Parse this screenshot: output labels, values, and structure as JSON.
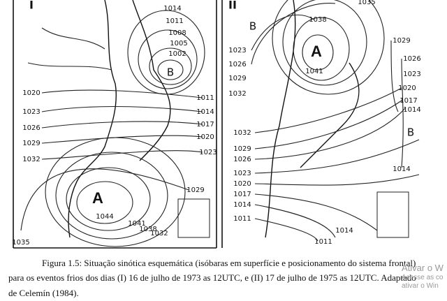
{
  "panels": [
    {
      "label": "I",
      "texts": [
        "1014",
        "1011",
        "1008",
        "1005",
        "1002",
        "B",
        "1011",
        "1014",
        "1017",
        "1020",
        "1023",
        "1029",
        "1020",
        "1023",
        "1026",
        "1029",
        "1032",
        "A",
        "1044",
        "1041",
        "1038",
        "1032",
        "1035"
      ]
    },
    {
      "label": "II",
      "texts": [
        "1035",
        "1038",
        "B",
        "A",
        "1041",
        "1023",
        "1026",
        "1029",
        "1032",
        "1029",
        "1026",
        "1023",
        "1020",
        "1017",
        "1014",
        "B",
        "1014",
        "1032",
        "1029",
        "1026",
        "1023",
        "1020",
        "1017",
        "1014",
        "1011",
        "1014",
        "1011"
      ]
    }
  ],
  "caption": [
    "Figura 1.5: Situação sinótica esquemática (isóbaras em superfície e posicionamento do sistema frontal)",
    "para os eventos frios dos dias (I) 16 de julho de 1973 as 12UTC, e (II) 17 de julho de 1975 as 12UTC. Adaptado",
    "de Celemín (1984)."
  ],
  "watermark": [
    "Ativar o W",
    "Acesse as co",
    "ativar o Win"
  ]
}
